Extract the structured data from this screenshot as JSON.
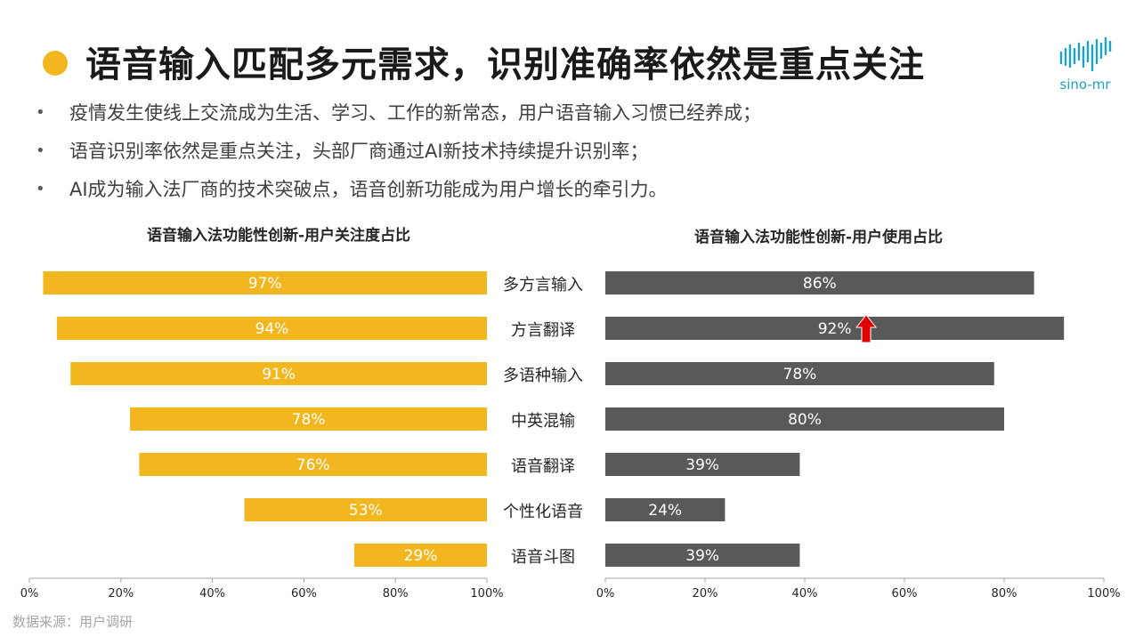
{
  "header": {
    "title": "语音输入匹配多元需求，识别准确率依然是重点关注",
    "logo_text": "sino-mr",
    "accent_color": "#F2B61F",
    "logo_color": "#1AA3C4"
  },
  "bullets": [
    "疫情发生使线上交流成为生活、学习、工作的新常态，用户语音输入习惯已经养成；",
    "语音识别率依然是重点关注，头部厂商通过AI新技术持续提升识别率；",
    "AI成为输入法厂商的技术突破点，语音创新功能成为用户增长的牵引力。"
  ],
  "chart_data": [
    {
      "type": "bar",
      "orientation": "horizontal",
      "title": "语音输入法功能性创新-用户关注度占比",
      "categories": [
        "多方言输入",
        "方言翻译",
        "多语种输入",
        "中英混输",
        "语音翻译",
        "个性化语音",
        "语音斗图"
      ],
      "values": [
        97,
        94,
        91,
        78,
        76,
        53,
        29
      ],
      "data_labels": [
        "97%",
        "94%",
        "91%",
        "78%",
        "76%",
        "53%",
        "29%"
      ],
      "xlim": [
        0,
        100
      ],
      "x_reversed": true,
      "ticks": [
        "100%",
        "80%",
        "60%",
        "40%",
        "20%",
        "0%"
      ],
      "color": "#F2B61F",
      "grid": false
    },
    {
      "type": "bar",
      "orientation": "horizontal",
      "title": "语音输入法功能性创新-用户使用占比",
      "categories": [
        "多方言输入",
        "方言翻译",
        "多语种输入",
        "中英混输",
        "语音翻译",
        "个性化语音",
        "语音斗图"
      ],
      "values": [
        86,
        92,
        78,
        80,
        39,
        24,
        39
      ],
      "data_labels": [
        "86%",
        "92%",
        "78%",
        "80%",
        "39%",
        "24%",
        "39%"
      ],
      "xlim": [
        0,
        100
      ],
      "x_reversed": false,
      "ticks": [
        "0%",
        "20%",
        "40%",
        "60%",
        "80%",
        "100%"
      ],
      "color": "#595959",
      "grid": false,
      "annotation": {
        "category": "方言翻译",
        "marker": "up-arrow",
        "color": "#E00000"
      }
    }
  ],
  "footer": {
    "source": "数据来源：用户调研"
  }
}
